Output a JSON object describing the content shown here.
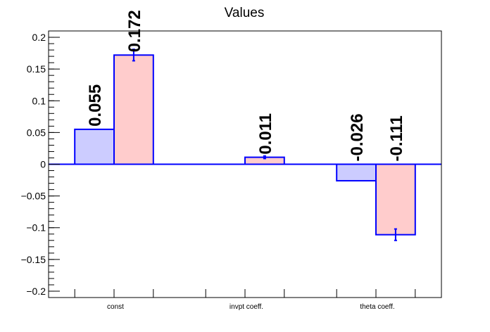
{
  "chart_data": {
    "type": "bar",
    "title": "Values",
    "xlabel": "",
    "ylabel": "",
    "ylim": [
      -0.21,
      0.21
    ],
    "yticks": [
      {
        "value": -0.2,
        "label": "−0.2"
      },
      {
        "value": -0.15,
        "label": "−0.15"
      },
      {
        "value": -0.1,
        "label": "−0.1"
      },
      {
        "value": -0.05,
        "label": "−0.05"
      },
      {
        "value": 0,
        "label": "0"
      },
      {
        "value": 0.05,
        "label": "0.05"
      },
      {
        "value": 0.1,
        "label": "0.1"
      },
      {
        "value": 0.15,
        "label": "0.15"
      },
      {
        "value": 0.2,
        "label": "0.2"
      }
    ],
    "categories": [
      "const",
      "invpt coeff.",
      "theta coeff."
    ],
    "grid": false,
    "legend": "none",
    "series": [
      {
        "fill": "#ccccff",
        "stroke": "#0000ff",
        "values": [
          0.055,
          0,
          -0.026
        ],
        "labels": [
          "0.055",
          "",
          "-0.026"
        ],
        "errors": [
          0,
          0,
          0
        ]
      },
      {
        "fill": "#ffcccc",
        "stroke": "#0000ff",
        "values": [
          0.172,
          0.011,
          -0.111
        ],
        "labels": [
          "0.172",
          "0.011",
          "-0.111"
        ],
        "errors": [
          0.009,
          0.002,
          0.009
        ]
      }
    ]
  }
}
